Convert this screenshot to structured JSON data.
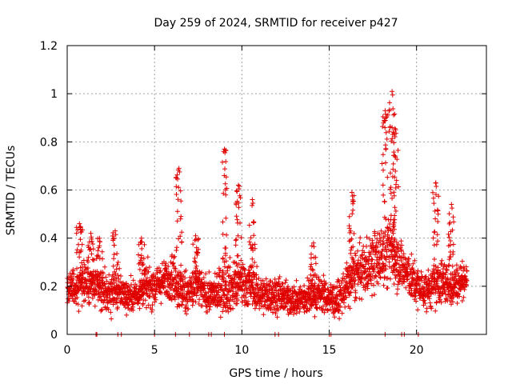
{
  "chart_data": {
    "type": "scatter",
    "title": "Day 259 of 2024, SRMTID for receiver p427",
    "xlabel": "GPS time / hours",
    "ylabel": "SRMTID / TECUs",
    "xlim": [
      0,
      24
    ],
    "ylim": [
      0,
      1.2
    ],
    "x_ticks": [
      0,
      5,
      10,
      15,
      20
    ],
    "x_tick_labels": [
      "0",
      "5",
      "10",
      "15",
      "20"
    ],
    "y_ticks": [
      0,
      0.2,
      0.4,
      0.6,
      0.8,
      1.0,
      1.2
    ],
    "y_tick_labels": [
      "0",
      "0.2",
      "0.4",
      "0.6",
      "0.8",
      "1",
      "1.2"
    ],
    "grid": true,
    "marker": "+",
    "marker_color": "#e00000",
    "profile": {
      "hours": [
        0,
        0.5,
        1,
        1.5,
        2,
        2.5,
        3,
        3.5,
        4,
        4.5,
        5,
        5.5,
        6,
        6.5,
        7,
        7.5,
        8,
        8.5,
        9,
        9.5,
        10,
        10.5,
        11,
        11.5,
        12,
        12.5,
        13,
        13.5,
        14,
        14.5,
        15,
        15.5,
        16,
        16.5,
        17,
        17.5,
        18,
        18.5,
        19,
        19.5,
        20,
        20.5,
        21,
        21.5,
        22,
        22.5,
        23
      ],
      "median": [
        0.2,
        0.2,
        0.22,
        0.2,
        0.18,
        0.17,
        0.18,
        0.16,
        0.17,
        0.2,
        0.2,
        0.22,
        0.25,
        0.18,
        0.18,
        0.2,
        0.16,
        0.17,
        0.2,
        0.2,
        0.22,
        0.2,
        0.17,
        0.16,
        0.17,
        0.15,
        0.14,
        0.15,
        0.16,
        0.17,
        0.15,
        0.14,
        0.2,
        0.25,
        0.27,
        0.3,
        0.32,
        0.35,
        0.3,
        0.25,
        0.2,
        0.18,
        0.2,
        0.22,
        0.2,
        0.22,
        0.25
      ],
      "spread": [
        0.06,
        0.08,
        0.1,
        0.08,
        0.08,
        0.07,
        0.07,
        0.06,
        0.06,
        0.08,
        0.08,
        0.07,
        0.09,
        0.09,
        0.08,
        0.08,
        0.06,
        0.07,
        0.1,
        0.1,
        0.1,
        0.08,
        0.07,
        0.07,
        0.07,
        0.06,
        0.06,
        0.07,
        0.07,
        0.07,
        0.06,
        0.07,
        0.09,
        0.1,
        0.1,
        0.12,
        0.12,
        0.14,
        0.1,
        0.09,
        0.08,
        0.07,
        0.08,
        0.09,
        0.08,
        0.07,
        0.05
      ]
    },
    "peaks": [
      {
        "x": 0.7,
        "y": 0.46
      },
      {
        "x": 1.35,
        "y": 0.42
      },
      {
        "x": 1.85,
        "y": 0.4
      },
      {
        "x": 2.75,
        "y": 0.43
      },
      {
        "x": 4.25,
        "y": 0.4
      },
      {
        "x": 6.4,
        "y": 0.69
      },
      {
        "x": 7.35,
        "y": 0.41
      },
      {
        "x": 9.0,
        "y": 0.77
      },
      {
        "x": 9.8,
        "y": 0.62
      },
      {
        "x": 10.6,
        "y": 0.56
      },
      {
        "x": 14.1,
        "y": 0.38
      },
      {
        "x": 16.3,
        "y": 0.59
      },
      {
        "x": 18.2,
        "y": 0.93
      },
      {
        "x": 18.6,
        "y": 1.01
      },
      {
        "x": 18.8,
        "y": 0.85
      },
      {
        "x": 21.1,
        "y": 0.63
      },
      {
        "x": 22.0,
        "y": 0.54
      }
    ],
    "zero_points_x": [
      1.65,
      1.7,
      2.9,
      3.1,
      5.0,
      6.2,
      7.0,
      8.1,
      8.25,
      9.0,
      11.9,
      12.1,
      15.0,
      15.1,
      18.2,
      19.15,
      19.3,
      20.1
    ]
  }
}
